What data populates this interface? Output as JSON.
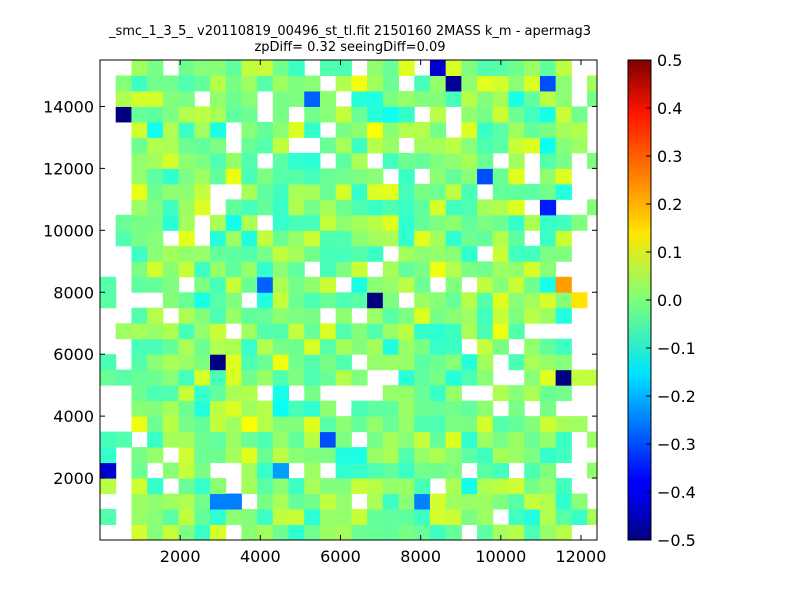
{
  "chart_data": {
    "type": "heatmap",
    "title": "_smc_1_3_5_ v20110819_00496_st_tl.fit 2150160 2MASS k_m - apermag3",
    "subtitle": "zpDiff= 0.32 seeingDiff=0.09",
    "xlabel": "",
    "ylabel": "",
    "xlim": [
      0,
      12400
    ],
    "ylim": [
      0,
      15500
    ],
    "xticks": [
      2000,
      4000,
      6000,
      8000,
      10000,
      12000
    ],
    "xtick_labels": [
      "2000",
      "4000",
      "6000",
      "8000",
      "10000",
      "12000"
    ],
    "yticks": [
      2000,
      4000,
      6000,
      8000,
      10000,
      12000,
      14000
    ],
    "ytick_labels": [
      "2000",
      "4000",
      "6000",
      "8000",
      "10000",
      "12000",
      "14000"
    ],
    "cell_size": [
      392,
      500
    ],
    "colormap": "jet",
    "colorbar": {
      "range": [
        -0.5,
        0.5
      ],
      "ticks": [
        0.5,
        0.4,
        0.3,
        0.2,
        0.1,
        0.0,
        -0.1,
        -0.2,
        -0.3,
        -0.4,
        -0.5
      ],
      "tick_labels": [
        "0.5",
        "0.4",
        "0.3",
        "0.2",
        "0.1",
        "0.0",
        "−0.1",
        "−0.2",
        "−0.3",
        "−0.4",
        "−0.5"
      ]
    },
    "grid": false,
    "missing_cells_rule": "cells without data are blank (white)",
    "typical_value_range": [
      -0.12,
      0.12
    ],
    "outliers": [
      {
        "x": 600,
        "y": 13750,
        "value": -0.5
      },
      {
        "x": 8800,
        "y": 14750,
        "value": -0.48
      },
      {
        "x": 8400,
        "y": 15250,
        "value": -0.42
      },
      {
        "x": 3000,
        "y": 5750,
        "value": -0.5
      },
      {
        "x": 6900,
        "y": 7750,
        "value": -0.5
      },
      {
        "x": 11500,
        "y": 5250,
        "value": -0.5
      },
      {
        "x": 200,
        "y": 2250,
        "value": -0.42
      },
      {
        "x": 11100,
        "y": 14750,
        "value": -0.3
      },
      {
        "x": 5300,
        "y": 14250,
        "value": -0.28
      },
      {
        "x": 9600,
        "y": 11750,
        "value": -0.3
      },
      {
        "x": 11000,
        "y": 10750,
        "value": -0.35
      },
      {
        "x": 4100,
        "y": 8250,
        "value": -0.28
      },
      {
        "x": 5800,
        "y": 3250,
        "value": -0.3
      },
      {
        "x": 3000,
        "y": 1250,
        "value": -0.25
      },
      {
        "x": 3400,
        "y": 1250,
        "value": -0.25
      },
      {
        "x": 8000,
        "y": 1250,
        "value": -0.25
      },
      {
        "x": 4500,
        "y": 2250,
        "value": -0.22
      },
      {
        "x": 11400,
        "y": 8250,
        "value": 0.22
      },
      {
        "x": 11800,
        "y": 7750,
        "value": 0.15
      },
      {
        "x": 3600,
        "y": 3750,
        "value": 0.12
      },
      {
        "x": 7000,
        "y": 13250,
        "value": 0.12
      }
    ]
  }
}
